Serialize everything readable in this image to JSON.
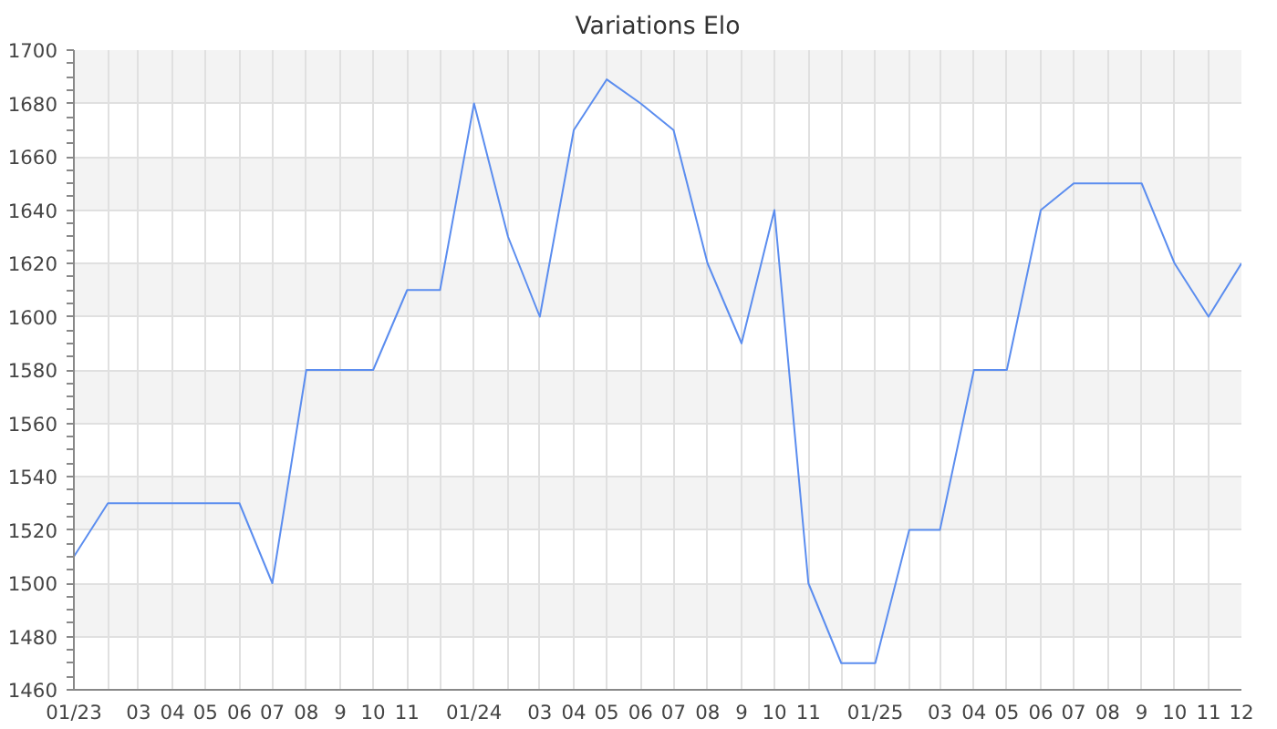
{
  "chart_data": {
    "type": "line",
    "title": "Variations Elo",
    "x": [
      "2023-01",
      "2023-02",
      "2023-03",
      "2023-04",
      "2023-05",
      "2023-06",
      "2023-07",
      "2023-08",
      "2023-09",
      "2023-10",
      "2023-11",
      "2023-12",
      "2024-01",
      "2024-02",
      "2024-03",
      "2024-04",
      "2024-05",
      "2024-06",
      "2024-07",
      "2024-08",
      "2024-09",
      "2024-10",
      "2024-11",
      "2024-12",
      "2025-01",
      "2025-02",
      "2025-03",
      "2025-04",
      "2025-05",
      "2025-06",
      "2025-07",
      "2025-08",
      "2025-09",
      "2025-10",
      "2025-11",
      "2025-12"
    ],
    "series": [
      {
        "color": "#5b8def",
        "values": [
          1510,
          1530,
          1530,
          1530,
          1530,
          1530,
          1500,
          1580,
          1580,
          1580,
          1610,
          1610,
          1680,
          1630,
          1600,
          1670,
          1689,
          1680,
          1670,
          1620,
          1590,
          1640,
          1500,
          1470,
          1470,
          1520,
          1520,
          1580,
          1580,
          1640,
          1650,
          1650,
          1650,
          1620,
          1600,
          1620
        ]
      }
    ],
    "xlim": [
      "2023-01",
      "2025-12"
    ],
    "xticks": [
      {
        "value": "2023-01",
        "label": "01/23"
      },
      {
        "value": "2023-02",
        "label": null
      },
      {
        "value": "2023-03",
        "label": "03"
      },
      {
        "value": "2023-04",
        "label": "04"
      },
      {
        "value": "2023-05",
        "label": "05"
      },
      {
        "value": "2023-06",
        "label": "06"
      },
      {
        "value": "2023-07",
        "label": "07"
      },
      {
        "value": "2023-08",
        "label": "08"
      },
      {
        "value": "2023-09",
        "label": "9"
      },
      {
        "value": "2023-10",
        "label": "10"
      },
      {
        "value": "2023-11",
        "label": "11"
      },
      {
        "value": "2023-12",
        "label": null
      },
      {
        "value": "2024-01",
        "label": "01/24"
      },
      {
        "value": "2024-02",
        "label": null
      },
      {
        "value": "2024-03",
        "label": "03"
      },
      {
        "value": "2024-04",
        "label": "04"
      },
      {
        "value": "2024-05",
        "label": "05"
      },
      {
        "value": "2024-06",
        "label": "06"
      },
      {
        "value": "2024-07",
        "label": "07"
      },
      {
        "value": "2024-08",
        "label": "08"
      },
      {
        "value": "2024-09",
        "label": "9"
      },
      {
        "value": "2024-10",
        "label": "10"
      },
      {
        "value": "2024-11",
        "label": "11"
      },
      {
        "value": "2024-12",
        "label": null
      },
      {
        "value": "2025-01",
        "label": "01/25"
      },
      {
        "value": "2025-02",
        "label": null
      },
      {
        "value": "2025-03",
        "label": "03"
      },
      {
        "value": "2025-04",
        "label": "04"
      },
      {
        "value": "2025-05",
        "label": "05"
      },
      {
        "value": "2025-06",
        "label": "06"
      },
      {
        "value": "2025-07",
        "label": "07"
      },
      {
        "value": "2025-08",
        "label": "08"
      },
      {
        "value": "2025-09",
        "label": "9"
      },
      {
        "value": "2025-10",
        "label": "10"
      },
      {
        "value": "2025-11",
        "label": "11"
      },
      {
        "value": "2025-12",
        "label": "12"
      }
    ],
    "ylim": [
      1460,
      1700
    ],
    "yticks": [
      1460,
      1480,
      1500,
      1520,
      1540,
      1560,
      1580,
      1600,
      1620,
      1640,
      1660,
      1680,
      1700
    ],
    "grid": true,
    "marker": "none",
    "line_style": "solid"
  }
}
